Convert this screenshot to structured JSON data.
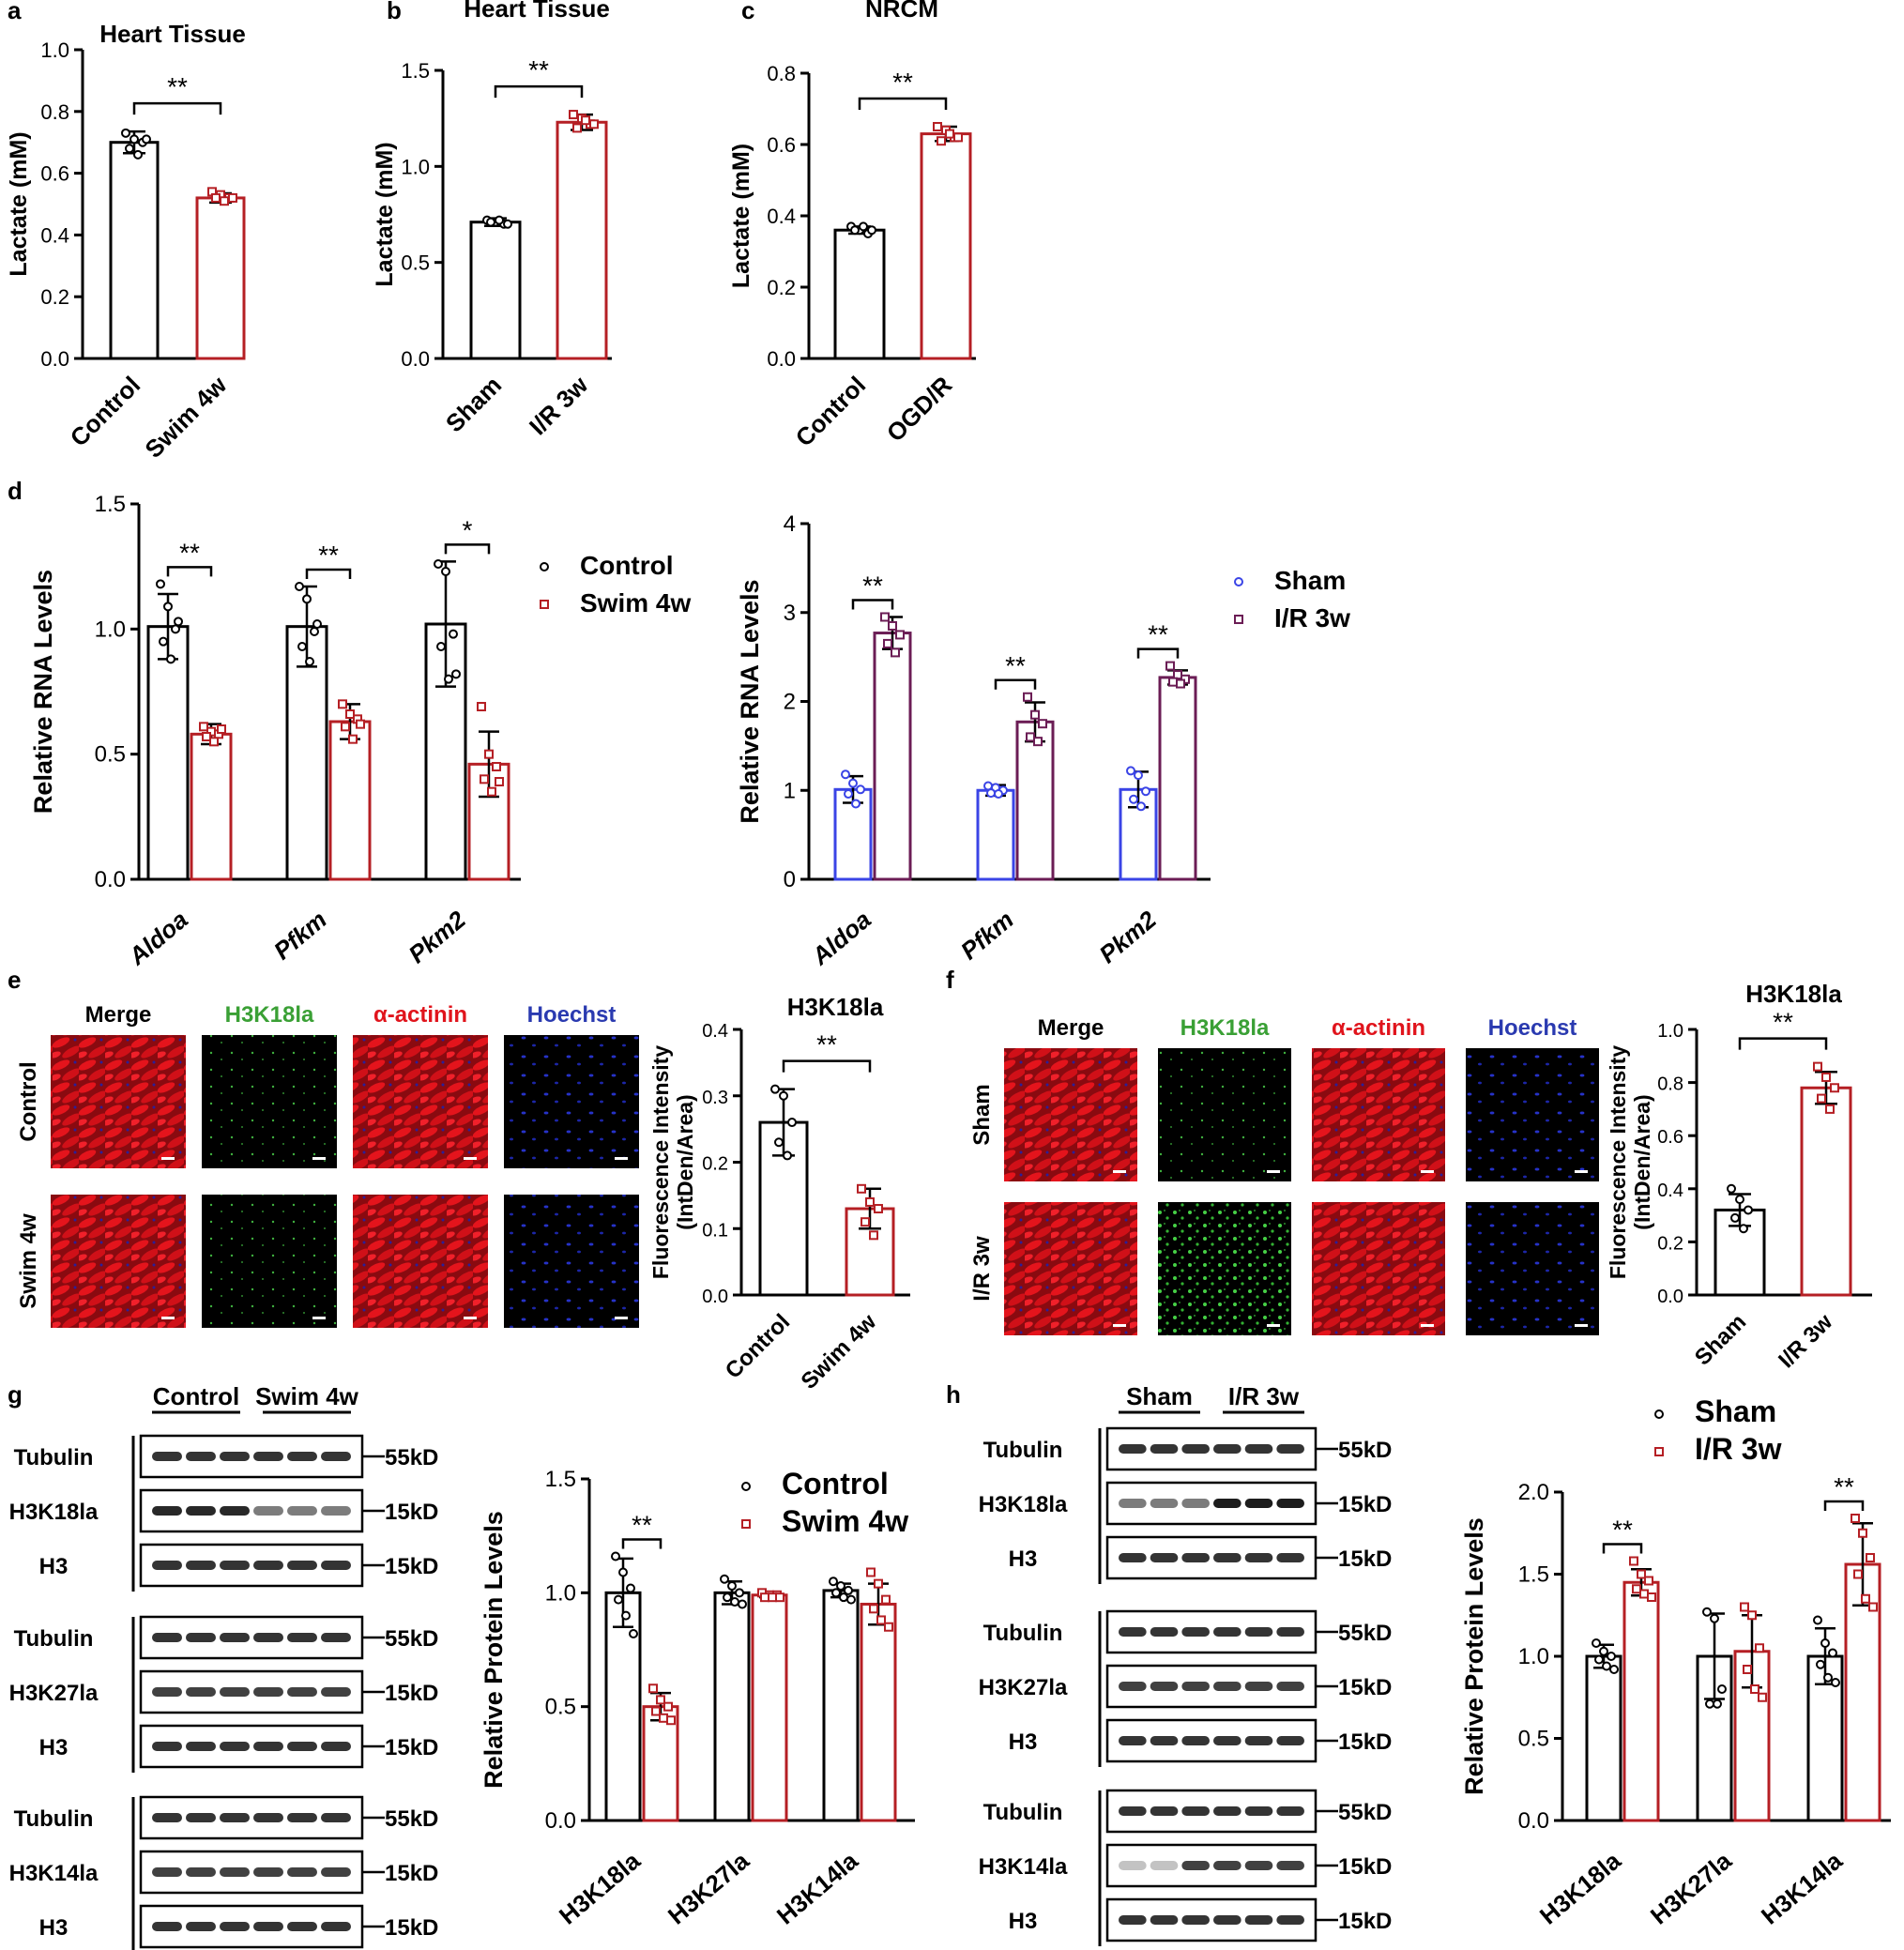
{
  "colors": {
    "black": "#000000",
    "red": "#b51f24",
    "blue": "#3a44e6",
    "purple": "#6b1d55"
  },
  "panels": {
    "a": {
      "letter": "a"
    },
    "b": {
      "letter": "b"
    },
    "c": {
      "letter": "c"
    },
    "d": {
      "letter": "d"
    },
    "e": {
      "letter": "e"
    },
    "f": {
      "letter": "f"
    },
    "g": {
      "letter": "g"
    },
    "h": {
      "letter": "h"
    }
  },
  "images_e": {
    "channels": [
      "Merge",
      "H3K18la",
      "α-actinin",
      "Hoechst"
    ],
    "rows": [
      "Control",
      "Swim 4w"
    ]
  },
  "images_f": {
    "channels": [
      "Merge",
      "H3K18la",
      "α-actinin",
      "Hoechst"
    ],
    "rows": [
      "Sham",
      "I/R 3w"
    ]
  },
  "blot_g": {
    "groups": [
      "Control",
      "Swim 4w"
    ],
    "blocks": [
      {
        "bands": [
          "Tubulin",
          "H3K18la",
          "H3"
        ],
        "sizes": [
          "55kD",
          "15kD",
          "15kD"
        ]
      },
      {
        "bands": [
          "Tubulin",
          "H3K27la",
          "H3"
        ],
        "sizes": [
          "55kD",
          "15kD",
          "15kD"
        ]
      },
      {
        "bands": [
          "Tubulin",
          "H3K14la",
          "H3"
        ],
        "sizes": [
          "55kD",
          "15kD",
          "15kD"
        ]
      }
    ]
  },
  "blot_h": {
    "groups": [
      "Sham",
      "I/R 3w"
    ],
    "blocks": [
      {
        "bands": [
          "Tubulin",
          "H3K18la",
          "H3"
        ],
        "sizes": [
          "55kD",
          "15kD",
          "15kD"
        ]
      },
      {
        "bands": [
          "Tubulin",
          "H3K27la",
          "H3"
        ],
        "sizes": [
          "55kD",
          "15kD",
          "15kD"
        ]
      },
      {
        "bands": [
          "Tubulin",
          "H3K14la",
          "H3"
        ],
        "sizes": [
          "55kD",
          "15kD",
          "15kD"
        ]
      }
    ]
  },
  "chart_data": [
    {
      "id": "a",
      "type": "bar",
      "title": "Heart Tissue",
      "ylabel": "Lactate (mM)",
      "ylim": [
        0,
        1.0
      ],
      "yticks": [
        "0.0",
        "0.2",
        "0.4",
        "0.6",
        "0.8",
        "1.0"
      ],
      "categories": [
        "Control",
        "Swim 4w"
      ],
      "values": [
        0.7,
        0.52
      ],
      "errors": [
        0.035,
        0.015
      ],
      "colors": [
        "#000000",
        "#b51f24"
      ],
      "points": [
        [
          0.73,
          0.71,
          0.7,
          0.68,
          0.66,
          0.71
        ],
        [
          0.54,
          0.53,
          0.52,
          0.52,
          0.51,
          0.52
        ]
      ],
      "significance": [
        {
          "from": 0,
          "to": 1,
          "label": "**"
        }
      ]
    },
    {
      "id": "b",
      "type": "bar",
      "title": "Heart Tissue",
      "ylabel": "Lactate (mM)",
      "ylim": [
        0,
        1.5
      ],
      "yticks": [
        "0.0",
        "0.5",
        "1.0",
        "1.5"
      ],
      "categories": [
        "Sham",
        "I/R 3w"
      ],
      "values": [
        0.71,
        1.23
      ],
      "errors": [
        0.02,
        0.04
      ],
      "colors": [
        "#000000",
        "#b51f24"
      ],
      "points": [
        [
          0.72,
          0.71,
          0.7,
          0.71,
          0.72,
          0.7
        ],
        [
          1.27,
          1.25,
          1.22,
          1.2,
          1.24,
          1.22
        ]
      ],
      "significance": [
        {
          "from": 0,
          "to": 1,
          "label": "**"
        }
      ]
    },
    {
      "id": "c",
      "type": "bar",
      "title": "NRCM",
      "ylabel": "Lactate (mM)",
      "ylim": [
        0,
        0.8
      ],
      "yticks": [
        "0.0",
        "0.2",
        "0.4",
        "0.6",
        "0.8"
      ],
      "categories": [
        "Control",
        "OGD/R"
      ],
      "values": [
        0.36,
        0.63
      ],
      "errors": [
        0.01,
        0.02
      ],
      "colors": [
        "#000000",
        "#b51f24"
      ],
      "points": [
        [
          0.37,
          0.36,
          0.35,
          0.36,
          0.37,
          0.36
        ],
        [
          0.65,
          0.64,
          0.62,
          0.61,
          0.63,
          0.62
        ]
      ],
      "significance": [
        {
          "from": 0,
          "to": 1,
          "label": "**"
        }
      ]
    },
    {
      "id": "d1",
      "type": "bar",
      "ylabel": "Relative RNA Levels",
      "ylim": [
        0,
        1.5
      ],
      "yticks": [
        "0.0",
        "0.5",
        "1.0",
        "1.5"
      ],
      "categories": [
        "Aldoa",
        "Pfkm",
        "Pkm2"
      ],
      "series": [
        {
          "name": "Control",
          "color": "#000000",
          "values": [
            1.01,
            1.01,
            1.02
          ],
          "errors": [
            0.13,
            0.16,
            0.25
          ],
          "points": [
            [
              1.18,
              1.09,
              1.0,
              0.95,
              0.88,
              1.03
            ],
            [
              1.17,
              1.12,
              0.99,
              0.93,
              0.87,
              1.02
            ],
            [
              1.26,
              1.23,
              0.98,
              0.93,
              0.8,
              0.82
            ]
          ]
        },
        {
          "name": "Swim 4w",
          "color": "#b51f24",
          "values": [
            0.58,
            0.63,
            0.46
          ],
          "errors": [
            0.04,
            0.07,
            0.13
          ],
          "points": [
            [
              0.61,
              0.59,
              0.58,
              0.57,
              0.55,
              0.6
            ],
            [
              0.7,
              0.66,
              0.64,
              0.61,
              0.56,
              0.62
            ],
            [
              0.69,
              0.5,
              0.45,
              0.4,
              0.35,
              0.39
            ]
          ]
        }
      ],
      "significance": [
        {
          "group": 0,
          "label": "**"
        },
        {
          "group": 1,
          "label": "**"
        },
        {
          "group": 2,
          "label": "*"
        }
      ]
    },
    {
      "id": "d2",
      "type": "bar",
      "ylabel": "Relative RNA Levels",
      "ylim": [
        0,
        4
      ],
      "yticks": [
        "0",
        "1",
        "2",
        "3",
        "4"
      ],
      "categories": [
        "Aldoa",
        "Pfkm",
        "Pkm2"
      ],
      "series": [
        {
          "name": "Sham",
          "color": "#3a44e6",
          "values": [
            1.01,
            1.0,
            1.01
          ],
          "errors": [
            0.15,
            0.06,
            0.2
          ],
          "points": [
            [
              1.18,
              1.08,
              1.01,
              0.96,
              0.85
            ],
            [
              1.05,
              1.03,
              1.0,
              0.97,
              0.96
            ],
            [
              1.22,
              1.17,
              0.99,
              0.9,
              0.82
            ]
          ]
        },
        {
          "name": "I/R 3w",
          "color": "#6b1d55",
          "values": [
            2.77,
            1.77,
            2.27
          ],
          "errors": [
            0.18,
            0.22,
            0.08
          ],
          "points": [
            [
              2.95,
              2.85,
              2.75,
              2.65,
              2.55
            ],
            [
              2.05,
              1.85,
              1.75,
              1.6,
              1.55
            ],
            [
              2.4,
              2.3,
              2.25,
              2.22,
              2.2
            ]
          ]
        }
      ],
      "significance": [
        {
          "group": 0,
          "label": "**"
        },
        {
          "group": 1,
          "label": "**"
        },
        {
          "group": 2,
          "label": "**"
        }
      ]
    },
    {
      "id": "e",
      "type": "bar",
      "title": "H3K18la",
      "ylabel": "Fluorescence Intensity\n(IntDen/Area)",
      "ylim": [
        0,
        0.4
      ],
      "yticks": [
        "0.0",
        "0.1",
        "0.2",
        "0.3",
        "0.4"
      ],
      "categories": [
        "Control",
        "Swim 4w"
      ],
      "values": [
        0.26,
        0.13
      ],
      "errors": [
        0.05,
        0.03
      ],
      "colors": [
        "#000000",
        "#b51f24"
      ],
      "points": [
        [
          0.31,
          0.3,
          0.26,
          0.23,
          0.21
        ],
        [
          0.16,
          0.14,
          0.13,
          0.11,
          0.09
        ]
      ],
      "significance": [
        {
          "from": 0,
          "to": 1,
          "label": "**"
        }
      ]
    },
    {
      "id": "f",
      "type": "bar",
      "title": "H3K18la",
      "ylabel": "Fluorescence Intensity\n(IntDen/Area)",
      "ylim": [
        0,
        1.0
      ],
      "yticks": [
        "0.0",
        "0.2",
        "0.4",
        "0.6",
        "0.8",
        "1.0"
      ],
      "categories": [
        "Sham",
        "I/R 3w"
      ],
      "values": [
        0.32,
        0.78
      ],
      "errors": [
        0.06,
        0.06
      ],
      "colors": [
        "#000000",
        "#b51f24"
      ],
      "points": [
        [
          0.4,
          0.36,
          0.32,
          0.29,
          0.25
        ],
        [
          0.86,
          0.82,
          0.78,
          0.74,
          0.7
        ]
      ],
      "significance": [
        {
          "from": 0,
          "to": 1,
          "label": "**"
        }
      ]
    },
    {
      "id": "g",
      "type": "bar",
      "ylabel": "Relative Protein Levels",
      "ylim": [
        0,
        1.5
      ],
      "yticks": [
        "0.0",
        "0.5",
        "1.0",
        "1.5"
      ],
      "categories": [
        "H3K18la",
        "H3K27la",
        "H3K14la"
      ],
      "series": [
        {
          "name": "Control",
          "color": "#000000",
          "values": [
            1.0,
            1.0,
            1.01
          ],
          "errors": [
            0.15,
            0.05,
            0.03
          ],
          "points": [
            [
              1.16,
              1.09,
              1.02,
              0.97,
              0.9,
              0.82
            ],
            [
              1.06,
              1.03,
              1.0,
              0.98,
              0.96,
              0.95
            ],
            [
              1.05,
              1.03,
              1.01,
              1.0,
              0.98,
              0.97
            ]
          ]
        },
        {
          "name": "Swim 4w",
          "color": "#b51f24",
          "values": [
            0.5,
            0.99,
            0.95
          ],
          "errors": [
            0.06,
            0.01,
            0.09
          ],
          "points": [
            [
              0.58,
              0.53,
              0.5,
              0.48,
              0.45,
              0.44
            ],
            [
              1.0,
              0.99,
              0.99,
              0.98,
              0.98,
              0.98
            ],
            [
              1.09,
              1.04,
              0.97,
              0.93,
              0.88,
              0.85
            ]
          ]
        }
      ],
      "significance": [
        {
          "group": 0,
          "label": "**"
        }
      ]
    },
    {
      "id": "h",
      "type": "bar",
      "ylabel": "Relative Protein Levels",
      "ylim": [
        0,
        2.0
      ],
      "yticks": [
        "0.0",
        "0.5",
        "1.0",
        "1.5",
        "2.0"
      ],
      "categories": [
        "H3K18la",
        "H3K27la",
        "H3K14la"
      ],
      "series": [
        {
          "name": "Sham",
          "color": "#000000",
          "values": [
            1.0,
            1.0,
            1.0
          ],
          "errors": [
            0.07,
            0.26,
            0.17
          ],
          "points": [
            [
              1.08,
              1.03,
              1.0,
              0.98,
              0.94,
              0.92
            ],
            [
              1.27,
              1.23,
              0.8,
              0.71,
              0.71
            ],
            [
              1.22,
              1.08,
              1.02,
              0.95,
              0.87,
              0.84
            ]
          ]
        },
        {
          "name": "I/R 3w",
          "color": "#b51f24",
          "values": [
            1.45,
            1.03,
            1.56
          ],
          "errors": [
            0.08,
            0.22,
            0.25
          ],
          "points": [
            [
              1.58,
              1.5,
              1.46,
              1.41,
              1.38,
              1.36
            ],
            [
              1.3,
              1.25,
              1.05,
              0.92,
              0.8,
              0.75
            ],
            [
              1.84,
              1.75,
              1.6,
              1.5,
              1.35,
              1.3
            ]
          ]
        }
      ],
      "significance": [
        {
          "group": 0,
          "label": "**"
        },
        {
          "group": 2,
          "label": "**"
        }
      ]
    }
  ]
}
